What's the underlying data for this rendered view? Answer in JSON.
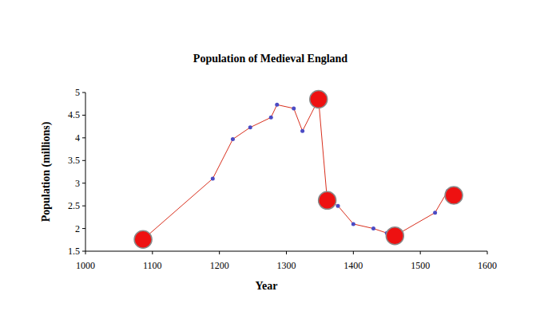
{
  "chart_data": {
    "type": "line",
    "title": "Population of Medieval England",
    "x_label": "Year",
    "y_label": "Population (millions)",
    "xlim": [
      1000,
      1600
    ],
    "xticks": [
      1000,
      1100,
      1200,
      1300,
      1400,
      1500,
      1600
    ],
    "ylim": [
      1.5,
      5
    ],
    "yticks": [
      1.5,
      2,
      2.5,
      3,
      3.5,
      4,
      4.5,
      5
    ],
    "grid": false,
    "series": [
      {
        "type": "line",
        "color": "#d9301e",
        "marker": "circle",
        "x": [
          1086,
          1190,
          1220,
          1246,
          1277,
          1286,
          1311,
          1324,
          1348,
          1361,
          1377,
          1400,
          1430,
          1450,
          1462,
          1522,
          1541,
          1550
        ],
        "values": [
          1.76,
          3.1,
          3.97,
          4.23,
          4.45,
          4.73,
          4.65,
          4.15,
          4.85,
          2.62,
          2.5,
          2.1,
          2.0,
          1.9,
          1.84,
          2.35,
          2.83,
          2.73
        ]
      },
      {
        "type": "scatter",
        "color": "#ee1111",
        "marker": "circle",
        "x": [
          1086,
          1348,
          1361,
          1462,
          1550
        ],
        "values": [
          1.76,
          4.85,
          2.62,
          1.84,
          2.73
        ]
      }
    ]
  }
}
